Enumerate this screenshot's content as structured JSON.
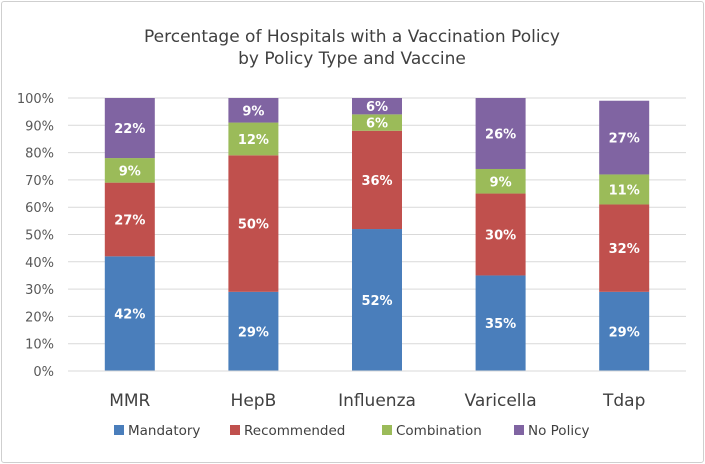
{
  "chart_data": {
    "type": "bar",
    "stacked": true,
    "title_lines": [
      "Percentage of Hospitals with a Vaccination Policy",
      "by Policy Type and Vaccine"
    ],
    "categories": [
      "MMR",
      "HepB",
      "Influenza",
      "Varicella",
      "Tdap"
    ],
    "series": [
      {
        "name": "Mandatory",
        "color": "#4a7ebb",
        "values": [
          42,
          29,
          52,
          35,
          29
        ]
      },
      {
        "name": "Recommended",
        "color": "#c0504d",
        "values": [
          27,
          50,
          36,
          30,
          32
        ]
      },
      {
        "name": "Combination",
        "color": "#9bbb59",
        "values": [
          9,
          12,
          6,
          9,
          11
        ]
      },
      {
        "name": "No Policy",
        "color": "#8064a2",
        "values": [
          22,
          9,
          6,
          26,
          27
        ]
      }
    ],
    "ylim": [
      0,
      100
    ],
    "yticks": [
      "0%",
      "10%",
      "20%",
      "30%",
      "40%",
      "50%",
      "60%",
      "70%",
      "80%",
      "90%",
      "100%"
    ],
    "grid": true,
    "legend_position": "bottom",
    "value_suffix": "%"
  }
}
